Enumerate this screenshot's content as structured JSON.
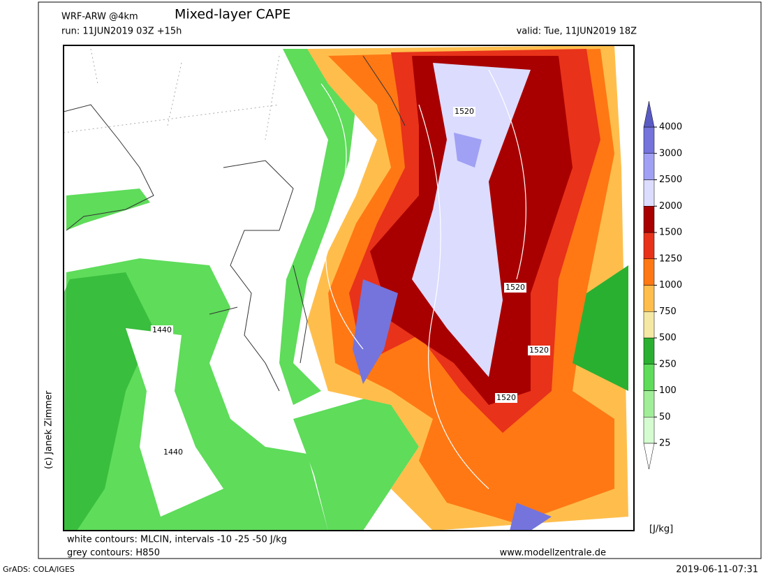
{
  "header": {
    "model": "WRF-ARW @4km",
    "title": "Mixed-layer CAPE",
    "run": "run: 11JUN2019 03Z +15h",
    "valid": "valid: Tue, 11JUN2019 18Z"
  },
  "map": {
    "contour_labels": [
      "1520",
      "1520",
      "1520",
      "1520",
      "1440",
      "1440"
    ]
  },
  "credit": "(c) Janek Zimmer",
  "colorbar": {
    "levels": [
      25,
      50,
      100,
      250,
      500,
      750,
      1000,
      1250,
      1500,
      2000,
      2500,
      3000,
      4000
    ],
    "colors": [
      "#d4fcd0",
      "#a0ee98",
      "#5edc5a",
      "#2ab030",
      "#f4e8a4",
      "#ffbe4c",
      "#ff7814",
      "#e8321a",
      "#a80000",
      "#dcdcff",
      "#a0a0f4",
      "#7474dc"
    ],
    "below_color": "#ffffff",
    "above_color": "#5a5ac4",
    "unit": "[J/kg]"
  },
  "footer": {
    "contours_white": "white contours: MLCIN, intervals -10 -25 -50 J/kg",
    "contours_grey": "grey contours: H850",
    "website": "www.modellzentrale.de",
    "grads": "GrADS: COLA/IGES",
    "timestamp": "2019-06-11-07:31"
  }
}
